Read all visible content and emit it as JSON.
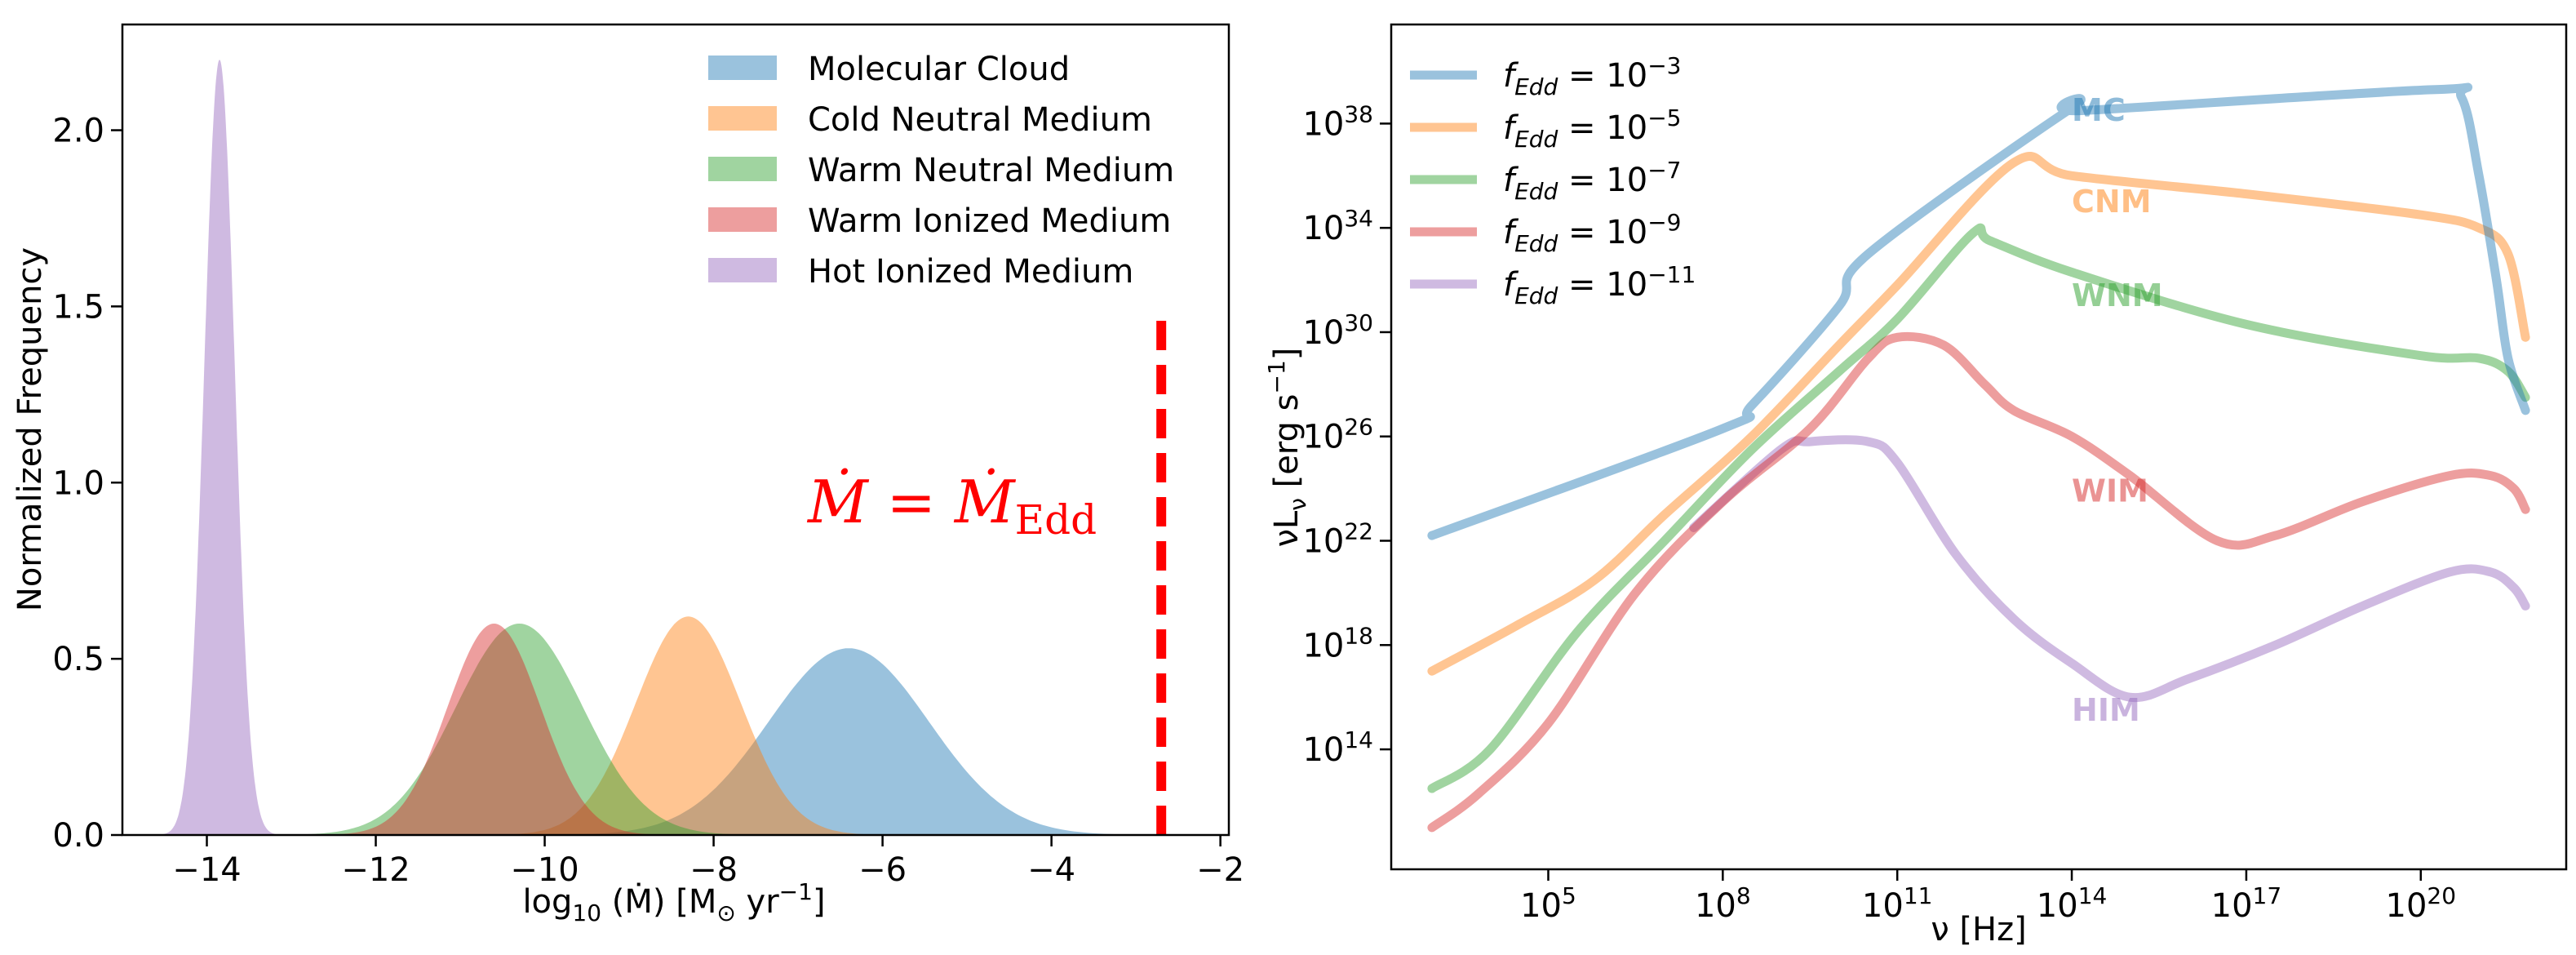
{
  "colors": {
    "mc": "#1f77b4",
    "cnm": "#ff7f0e",
    "wnm": "#2ca02c",
    "wim": "#d62728",
    "him": "#9467bd",
    "eddington_line": "#ff0000"
  },
  "chart_data": [
    {
      "type": "histogram",
      "title": "",
      "xlabel": "log10(Ṁ) [M⊙ yr⁻¹]",
      "xlabel_parts": {
        "func": "log",
        "sub": "10",
        "mid": " (Ṁ) [M",
        "sun_sub": "⊙",
        "unit": " yr",
        "exp": "−1",
        "end": "]"
      },
      "ylabel": "Normalized Frequency",
      "xlim": [
        -15.0,
        -1.9
      ],
      "ylim": [
        0,
        2.3
      ],
      "xticks": [
        -14,
        -12,
        -10,
        -8,
        -6,
        -4,
        -2
      ],
      "xtick_labels": [
        "−14",
        "−12",
        "−10",
        "−8",
        "−6",
        "−4",
        "−2"
      ],
      "yticks": [
        0.0,
        0.5,
        1.0,
        1.5,
        2.0
      ],
      "ytick_labels": [
        "0.0",
        "0.5",
        "1.0",
        "1.5",
        "2.0"
      ],
      "legend_location": "top-right",
      "series": [
        {
          "name": "Molecular Cloud",
          "color_key": "mc",
          "mean": -6.4,
          "sigma": 0.95,
          "peak": 0.53
        },
        {
          "name": "Cold Neutral Medium",
          "color_key": "cnm",
          "mean": -8.3,
          "sigma": 0.62,
          "peak": 0.62
        },
        {
          "name": "Warm Neutral Medium",
          "color_key": "wnm",
          "mean": -10.3,
          "sigma": 0.75,
          "peak": 0.6
        },
        {
          "name": "Warm Ionized Medium",
          "color_key": "wim",
          "mean": -10.6,
          "sigma": 0.55,
          "peak": 0.6
        },
        {
          "name": "Hot Ionized Medium",
          "color_key": "him",
          "mean": -13.85,
          "sigma": 0.18,
          "peak": 2.2
        }
      ],
      "annotation": {
        "text": "Ṁ = Ṁ",
        "text_parts": {
          "lhs": "Ṁ",
          "eq": " = ",
          "rhs": "Ṁ",
          "sub": "Edd"
        },
        "x_value": -2.7,
        "y_range": [
          0,
          1.5
        ]
      }
    },
    {
      "type": "line",
      "title": "",
      "xlabel": "ν [Hz]",
      "ylabel": "νL",
      "ylabel_parts": {
        "main": "νL",
        "sub": "ν",
        "unit": " [erg s",
        "exp": "−1",
        "end": "]"
      },
      "x_scale": "log",
      "y_scale": "log",
      "xlim_log10": [
        2.3,
        22.5
      ],
      "ylim_log10": [
        9.4,
        41.8
      ],
      "xticks_log10": [
        5,
        8,
        11,
        14,
        17,
        20
      ],
      "xtick_labels": [
        "10",
        "10",
        "10",
        "10",
        "10",
        "10"
      ],
      "xtick_exps": [
        "5",
        "8",
        "11",
        "14",
        "17",
        "20"
      ],
      "yticks_log10": [
        14,
        18,
        22,
        26,
        30,
        34,
        38
      ],
      "ytick_labels": [
        "10",
        "10",
        "10",
        "10",
        "10",
        "10",
        "10"
      ],
      "ytick_exps": [
        "14",
        "18",
        "22",
        "26",
        "30",
        "34",
        "38"
      ],
      "legend_location": "top-left",
      "series": [
        {
          "name": "fEdd = 10^-3",
          "legend_exp": "−3",
          "label": "MC",
          "color_key": "mc",
          "x_log10": [
            3.0,
            8.0,
            8.5,
            10.0,
            10.5,
            14.0,
            14.2,
            20.2,
            20.7,
            21.0,
            21.3,
            21.5,
            21.8
          ],
          "y_log10": [
            22.2,
            26.3,
            27.2,
            31.0,
            33.0,
            38.6,
            38.5,
            39.3,
            39.0,
            36.0,
            32.0,
            29.0,
            27.0
          ]
        },
        {
          "name": "fEdd = 10^-5",
          "legend_exp": "−5",
          "label": "CNM",
          "color_key": "cnm",
          "x_log10": [
            3.0,
            4.5,
            5.8,
            7.0,
            8.5,
            10.0,
            11.0,
            13.0,
            14.0,
            17.0,
            20.0,
            21.0,
            21.5,
            21.8
          ],
          "y_log10": [
            17.0,
            18.8,
            20.5,
            23.0,
            26.0,
            29.5,
            31.8,
            36.5,
            36.0,
            35.3,
            34.5,
            34.0,
            33.0,
            29.8
          ]
        },
        {
          "name": "fEdd = 10^-7",
          "legend_exp": "−7",
          "label": "WNM",
          "color_key": "wnm",
          "x_log10": [
            3.0,
            4.0,
            5.5,
            7.0,
            8.5,
            10.0,
            11.0,
            12.3,
            12.6,
            14.0,
            17.0,
            20.0,
            21.0,
            21.5,
            21.8
          ],
          "y_log10": [
            12.5,
            14.0,
            18.5,
            22.0,
            25.5,
            28.5,
            30.5,
            33.8,
            33.5,
            32.3,
            30.3,
            29.1,
            29.0,
            28.5,
            27.5
          ]
        },
        {
          "name": "fEdd = 10^-9",
          "legend_exp": "−9",
          "label": "WIM",
          "color_key": "wim",
          "x_log10": [
            3.0,
            3.8,
            5.0,
            6.5,
            8.0,
            9.5,
            10.5,
            11.0,
            11.8,
            12.5,
            13.0,
            14.0,
            15.0,
            16.5,
            17.5,
            19.0,
            20.5,
            21.2,
            21.6,
            21.8
          ],
          "y_log10": [
            11.0,
            12.3,
            15.0,
            20.0,
            23.5,
            26.3,
            29.0,
            29.8,
            29.5,
            28.0,
            27.0,
            26.0,
            24.5,
            22.0,
            22.2,
            23.5,
            24.5,
            24.5,
            24.0,
            23.2
          ]
        },
        {
          "name": "fEdd = 10^-11",
          "legend_exp": "−11",
          "label": "HIM",
          "color_key": "him",
          "x_log10": [
            7.5,
            9.0,
            9.5,
            10.5,
            11.0,
            12.0,
            13.0,
            14.0,
            15.0,
            16.0,
            17.5,
            19.0,
            20.5,
            21.2,
            21.6,
            21.8
          ],
          "y_log10": [
            22.5,
            25.5,
            25.8,
            25.8,
            25.0,
            21.5,
            19.0,
            17.3,
            16.0,
            16.7,
            18.0,
            19.5,
            20.8,
            20.8,
            20.2,
            19.5
          ]
        }
      ]
    }
  ]
}
